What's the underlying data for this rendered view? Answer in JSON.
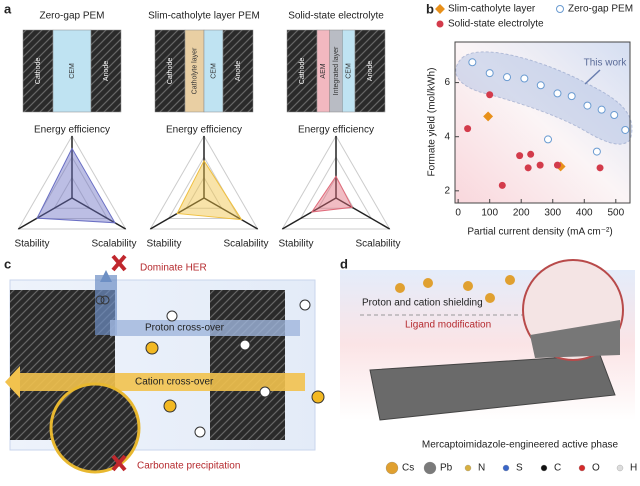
{
  "panel_labels": [
    "a",
    "b",
    "c",
    "d"
  ],
  "panel_a": {
    "radar_axes": [
      "Energy efficiency",
      "Stability",
      "Scalability"
    ],
    "devices": [
      {
        "title": "Zero-gap PEM",
        "layers": [
          "Cathode",
          "CEM",
          "Anode"
        ],
        "layer_colors": [
          "#2e2e2e",
          "#bfe3f2",
          "#2e2e2e"
        ],
        "radar": [
          0.8,
          0.65,
          0.8
        ],
        "color": "#6a6fc4"
      },
      {
        "title": "Slim-catholyte layer PEM",
        "layers": [
          "Cathode",
          "Catholyte layer",
          "CEM",
          "Anode"
        ],
        "layer_colors": [
          "#2e2e2e",
          "#e9cfa3",
          "#bfe3f2",
          "#2e2e2e"
        ],
        "radar": [
          0.6,
          0.5,
          0.7
        ],
        "color": "#f0c040"
      },
      {
        "title": "Solid-state electrolyte",
        "layers": [
          "Cathode",
          "AEM",
          "Integrated layer",
          "CEM",
          "Anode"
        ],
        "layer_colors": [
          "#2e2e2e",
          "#f2b8c0",
          "#b9bcc4",
          "#bfe3f2",
          "#2e2e2e"
        ],
        "radar": [
          0.35,
          0.45,
          0.3
        ],
        "color": "#e06a7a"
      }
    ]
  },
  "chart_data": {
    "type": "scatter",
    "x_label": "Partial current density (mA cm⁻²)",
    "y_label": "Formate yield (mol/kWh)",
    "annotation": "This work",
    "xlim": [
      -10,
      545
    ],
    "ylim": [
      1.55,
      7.5
    ],
    "xticks": [
      0,
      100,
      200,
      300,
      400,
      500
    ],
    "yticks": [
      2,
      4,
      6
    ],
    "series": [
      {
        "name": "Zero-gap PEM",
        "marker": "open-circle",
        "color": "#6a9bd1",
        "x": [
          45,
          100,
          155,
          210,
          262,
          315,
          360,
          410,
          455,
          495,
          530,
          285,
          440
        ],
        "values": [
          6.75,
          6.35,
          6.2,
          6.15,
          5.9,
          5.6,
          5.5,
          5.15,
          5.0,
          4.8,
          4.25,
          3.9,
          3.45
        ]
      },
      {
        "name": "Slim-catholyte layer",
        "marker": "diamond",
        "color": "#e8901a",
        "x": [
          95,
          325
        ],
        "values": [
          4.75,
          2.9
        ]
      },
      {
        "name": "Solid-state electrolyte",
        "marker": "dot",
        "color": "#d33b4b",
        "x": [
          30,
          100,
          140,
          195,
          230,
          222,
          260,
          315,
          450
        ],
        "values": [
          4.3,
          5.55,
          2.2,
          3.3,
          3.35,
          2.85,
          2.95,
          2.95,
          2.85
        ]
      }
    ]
  },
  "panel_c": {
    "her": "Dominate HER",
    "proton": "Proton cross-over",
    "cation": "Cation cross-over",
    "carbonate": "Carbonate precipitation"
  },
  "panel_d": {
    "shielding": "Proton and cation shielding",
    "ligand": "Ligand modification",
    "caption": "Mercaptoimidazole-engineered active phase",
    "legend": [
      {
        "label": "Cs",
        "color": "#e0a030"
      },
      {
        "label": "Pb",
        "color": "#7a7a7a"
      },
      {
        "label": "N",
        "color": "#d8b040"
      },
      {
        "label": "S",
        "color": "#3a66c8"
      },
      {
        "label": "C",
        "color": "#111111"
      },
      {
        "label": "O",
        "color": "#d42a2a"
      },
      {
        "label": "H",
        "color": "#dddddd"
      }
    ]
  }
}
